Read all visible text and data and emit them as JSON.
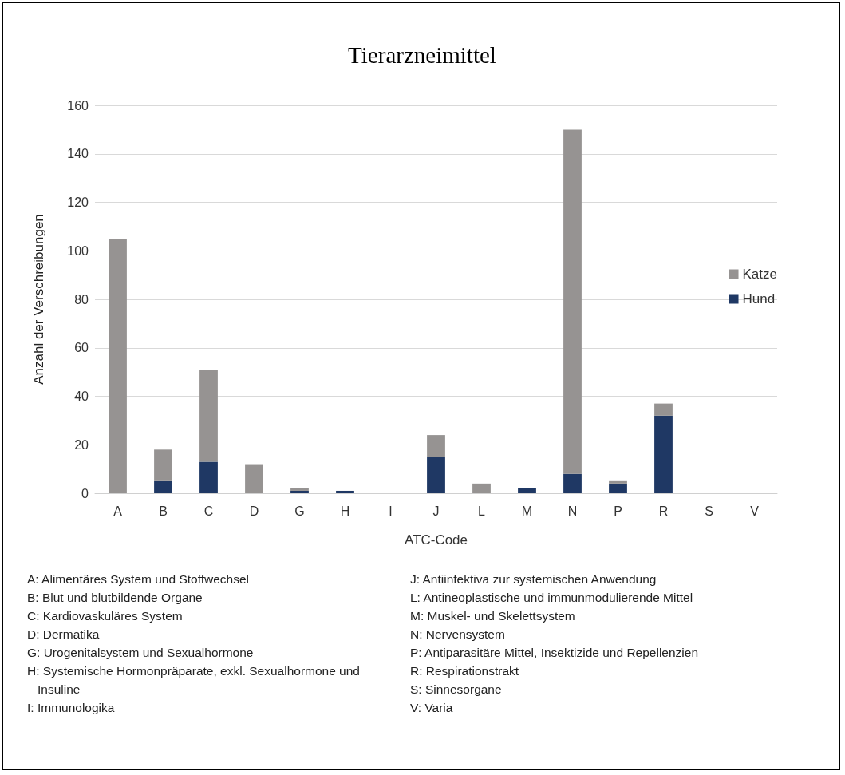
{
  "chart_data": {
    "type": "bar",
    "title": "Tierarzneimittel",
    "xlabel": "ATC-Code",
    "ylabel": "Anzahl der Verschreibungen",
    "categories": [
      "A",
      "B",
      "C",
      "D",
      "G",
      "H",
      "I",
      "J",
      "L",
      "M",
      "N",
      "P",
      "R",
      "S",
      "V"
    ],
    "stacked": true,
    "ylim": [
      0,
      160
    ],
    "yticks": [
      0,
      20,
      40,
      60,
      80,
      100,
      120,
      140,
      160
    ],
    "grid": "y",
    "legend": "right",
    "series": [
      {
        "name": "Hund",
        "color": "#1f3864",
        "values": [
          0,
          5,
          13,
          0,
          1,
          1,
          0,
          15,
          0,
          2,
          8,
          4,
          32,
          0,
          0
        ]
      },
      {
        "name": "Katze",
        "color": "#969392",
        "values": [
          105,
          13,
          38,
          12,
          1,
          0,
          0,
          9,
          4,
          0,
          142,
          1,
          5,
          0,
          0
        ]
      }
    ],
    "annotations": [
      "A: Alimentäres System und Stoffwechsel",
      "B: Blut und blutbildende Organe",
      "C: Kardiovaskuläres System",
      "D: Dermatika",
      "G: Urogenitalsystem und Sexualhormone",
      "H: Systemische Hormonpräparate, exkl. Sexualhormone und Insuline",
      "I: Immunologika",
      "J: Antiinfektiva zur systemischen Anwendung",
      "L: Antineoplastische und immunmodulierende Mittel",
      "M: Muskel- und Skelettsystem",
      "N: Nervensystem",
      "P: Antiparasitäre Mittel, Insektizide und Repellenzien",
      "R: Respirationstrakt",
      "S: Sinnesorgane",
      "V: Varia"
    ]
  }
}
